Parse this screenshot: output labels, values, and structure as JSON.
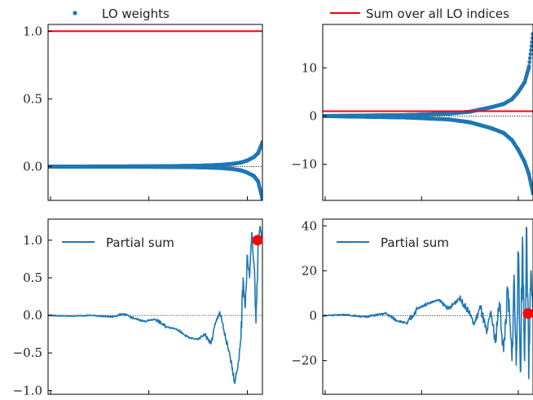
{
  "figure_legend": {
    "scatter_label": "LO weights",
    "line_label": "Sum over all LO indices",
    "scatter_color": "#1f77b4",
    "line_color": "#ff0000"
  },
  "chart_data": [
    {
      "type": "scatter",
      "panel": "top-left",
      "ylim": [
        -0.25,
        1.05
      ],
      "yticks": [
        0.0,
        0.5,
        1.0
      ],
      "ytick_labels": [
        "0.0",
        "0.5",
        "1.0"
      ],
      "reference_line": 1.0,
      "zero_line": true,
      "series": [
        {
          "x": [
            0,
            0.5,
            0.7,
            0.8,
            0.86,
            0.9,
            0.93,
            0.96,
            0.98,
            1.0
          ],
          "y": [
            0.0,
            0.002,
            0.006,
            0.012,
            0.02,
            0.03,
            0.045,
            0.07,
            0.1,
            0.18
          ]
        },
        {
          "x": [
            0,
            0.5,
            0.7,
            0.8,
            0.86,
            0.9,
            0.93,
            0.96,
            0.98,
            1.0
          ],
          "y": [
            0.0,
            -0.002,
            -0.005,
            -0.01,
            -0.018,
            -0.028,
            -0.045,
            -0.07,
            -0.11,
            -0.24
          ]
        }
      ]
    },
    {
      "type": "scatter",
      "panel": "top-right",
      "ylim": [
        -17.5,
        19
      ],
      "yticks": [
        -10,
        0,
        10
      ],
      "ytick_labels": [
        "−10",
        "0",
        "10"
      ],
      "reference_line": 1.0,
      "zero_line": true,
      "series": [
        {
          "x": [
            0,
            0.4,
            0.6,
            0.7,
            0.8,
            0.86,
            0.9,
            0.93,
            0.96,
            0.98,
            1.0
          ],
          "y": [
            0.0,
            0.2,
            0.5,
            0.9,
            1.8,
            2.5,
            3.5,
            5.0,
            7.0,
            10.0,
            17.0
          ]
        },
        {
          "x": [
            0,
            0.4,
            0.6,
            0.7,
            0.8,
            0.86,
            0.9,
            0.93,
            0.96,
            0.98,
            1.0
          ],
          "y": [
            0.0,
            -0.3,
            -0.7,
            -1.3,
            -2.5,
            -3.5,
            -5.0,
            -7.0,
            -9.5,
            -12.0,
            -16.0
          ]
        }
      ]
    },
    {
      "type": "line",
      "panel": "bottom-left",
      "ylim": [
        -1.05,
        1.28
      ],
      "yticks": [
        -1.0,
        -0.5,
        0.0,
        0.5,
        1.0
      ],
      "ytick_labels": [
        "−1.0",
        "−0.5",
        "0.0",
        "0.5",
        "1.0"
      ],
      "legend": "Partial sum",
      "legend_position": "top-left",
      "zero_line": true,
      "x": [
        0,
        0.1,
        0.2,
        0.3,
        0.35,
        0.4,
        0.45,
        0.5,
        0.55,
        0.6,
        0.63,
        0.66,
        0.7,
        0.73,
        0.76,
        0.78,
        0.8,
        0.82,
        0.84,
        0.86,
        0.87,
        0.88,
        0.89,
        0.9,
        0.91,
        0.92,
        0.93,
        0.94,
        0.95,
        0.96,
        0.97,
        0.98,
        0.99,
        1.0
      ],
      "y": [
        0.0,
        -0.01,
        0.0,
        -0.02,
        0.02,
        -0.04,
        -0.08,
        -0.05,
        -0.15,
        -0.18,
        -0.25,
        -0.3,
        -0.32,
        -0.25,
        -0.38,
        -0.12,
        0.05,
        -0.2,
        -0.45,
        -0.7,
        -0.9,
        -0.75,
        -0.6,
        -0.3,
        0.5,
        0.1,
        0.8,
        0.5,
        1.1,
        0.7,
        -0.1,
        1.0,
        1.18,
        1.0
      ],
      "endpoint": {
        "x": 1.0,
        "y": 1.0,
        "color": "#ff0000"
      }
    },
    {
      "type": "line",
      "panel": "bottom-right",
      "ylim": [
        -35,
        43
      ],
      "yticks": [
        -20,
        0,
        20,
        40
      ],
      "ytick_labels": [
        "−20",
        "0",
        "20",
        "40"
      ],
      "legend": "Partial sum",
      "legend_position": "top-left",
      "zero_line": true,
      "x": [
        0,
        0.1,
        0.2,
        0.3,
        0.35,
        0.4,
        0.45,
        0.5,
        0.55,
        0.6,
        0.65,
        0.7,
        0.72,
        0.75,
        0.78,
        0.8,
        0.82,
        0.84,
        0.86,
        0.88,
        0.9,
        0.91,
        0.92,
        0.93,
        0.94,
        0.95,
        0.96,
        0.97,
        0.98,
        0.99,
        1.0
      ],
      "y": [
        0.0,
        0.5,
        -0.5,
        1.0,
        -2.0,
        -3.5,
        3.0,
        5.5,
        7.0,
        3.0,
        8.0,
        1.0,
        -4.0,
        4.0,
        -8.0,
        2.0,
        -12.0,
        6.0,
        -16.0,
        12.0,
        -20.0,
        18.0,
        -22.0,
        28.0,
        -25.0,
        35.0,
        -20.0,
        39.0,
        -28.0,
        20.0,
        1.0
      ],
      "endpoint": {
        "x": 1.0,
        "y": 1.0,
        "color": "#ff0000"
      }
    }
  ]
}
